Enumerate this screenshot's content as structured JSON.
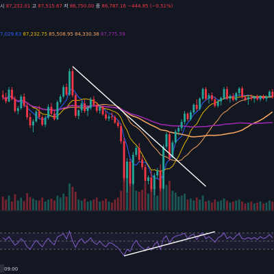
{
  "ohlc_legend": {
    "items": [
      {
        "text": "시",
        "color": "#d1d4dc"
      },
      {
        "text": "87,232.01",
        "color": "#f23645"
      },
      {
        "text": "고",
        "color": "#d1d4dc"
      },
      {
        "text": "87,515.67",
        "color": "#f23645"
      },
      {
        "text": "저",
        "color": "#d1d4dc"
      },
      {
        "text": "86,750.00",
        "color": "#f23645"
      },
      {
        "text": "종",
        "color": "#d1d4dc"
      },
      {
        "text": "86,787.16",
        "color": "#f23645"
      },
      {
        "text": "−444.85 (−0.51%)",
        "color": "#f23645"
      }
    ]
  },
  "ma_legend": {
    "items": [
      {
        "text": "7,029.63",
        "color": "#2962ff"
      },
      {
        "text": "87,232.75",
        "color": "#e6b800"
      },
      {
        "text": "85,508.95",
        "color": "#f7a35c"
      },
      {
        "text": "84,330.38",
        "color": "#f4a460"
      },
      {
        "text": "87,775.59",
        "color": "#9c27b0"
      }
    ]
  },
  "time_axis": {
    "labels": [
      "09:00"
    ]
  },
  "colors": {
    "background": "#131722",
    "bull": "#26a69a",
    "bear": "#f23645",
    "rsi_line": "#7e57c2",
    "trendline": "#ffffff"
  },
  "chart_data": {
    "type": "candlestick",
    "candles": [
      [
        88330,
        88460,
        88180,
        88260
      ],
      [
        88260,
        88390,
        88080,
        88140
      ],
      [
        88140,
        88560,
        88110,
        88480
      ],
      [
        88480,
        88560,
        88170,
        88210
      ],
      [
        88210,
        88290,
        87810,
        87860
      ],
      [
        87860,
        88000,
        87760,
        87940
      ],
      [
        87940,
        88340,
        87900,
        88280
      ],
      [
        88280,
        88370,
        87960,
        88010
      ],
      [
        88010,
        88090,
        87610,
        87680
      ],
      [
        87680,
        87800,
        87360,
        87440
      ],
      [
        87440,
        87620,
        87240,
        87560
      ],
      [
        87560,
        87890,
        87520,
        87840
      ],
      [
        87840,
        88010,
        87620,
        87680
      ],
      [
        87680,
        87730,
        87410,
        87460
      ],
      [
        87460,
        87720,
        87390,
        87660
      ],
      [
        87660,
        88050,
        87610,
        87980
      ],
      [
        87980,
        88090,
        87730,
        87780
      ],
      [
        87780,
        87900,
        87580,
        87620
      ],
      [
        87620,
        88170,
        87590,
        88120
      ],
      [
        88120,
        88340,
        88070,
        88280
      ],
      [
        88280,
        88620,
        88230,
        88560
      ],
      [
        88560,
        88660,
        88290,
        88340
      ],
      [
        88340,
        89100,
        88300,
        89020
      ],
      [
        89020,
        89110,
        88260,
        88320
      ],
      [
        88320,
        88380,
        87660,
        87720
      ],
      [
        87720,
        87910,
        87620,
        87880
      ],
      [
        87880,
        88150,
        87810,
        88080
      ],
      [
        88080,
        88200,
        87800,
        87860
      ],
      [
        87860,
        88010,
        87710,
        87950
      ],
      [
        87950,
        88260,
        87890,
        88200
      ],
      [
        88200,
        88290,
        87980,
        88040
      ],
      [
        88040,
        88120,
        87810,
        87870
      ],
      [
        87870,
        88050,
        87780,
        87980
      ],
      [
        87980,
        88020,
        87720,
        87760
      ],
      [
        87760,
        87860,
        87580,
        87640
      ],
      [
        87640,
        87760,
        87560,
        87700
      ],
      [
        87700,
        87820,
        87600,
        87680
      ],
      [
        87680,
        87740,
        87480,
        87520
      ],
      [
        87520,
        87600,
        87360,
        87420
      ],
      [
        87420,
        87500,
        86900,
        86980
      ],
      [
        86980,
        87080,
        85800,
        85900
      ],
      [
        85900,
        86480,
        85480,
        86380
      ],
      [
        86380,
        86460,
        85660,
        85740
      ],
      [
        85740,
        86660,
        85700,
        86580
      ],
      [
        86580,
        86840,
        86520,
        86780
      ],
      [
        86780,
        86920,
        86360,
        86440
      ],
      [
        86440,
        86560,
        86150,
        86220
      ],
      [
        86220,
        86300,
        85760,
        85820
      ],
      [
        85820,
        85980,
        85720,
        85920
      ],
      [
        85920,
        86120,
        85500,
        85580
      ],
      [
        85580,
        86040,
        85400,
        85980
      ],
      [
        85980,
        86200,
        85880,
        86120
      ],
      [
        86120,
        86310,
        85520,
        85600
      ],
      [
        85600,
        86880,
        85560,
        86820
      ],
      [
        86820,
        87240,
        86760,
        87180
      ],
      [
        87180,
        87260,
        86400,
        86500
      ],
      [
        86500,
        87000,
        86470,
        86940
      ],
      [
        86940,
        87320,
        86900,
        87260
      ],
      [
        87260,
        87420,
        87150,
        87360
      ],
      [
        87360,
        87620,
        87280,
        87540
      ],
      [
        87540,
        87860,
        87470,
        87780
      ],
      [
        87780,
        87820,
        87560,
        87620
      ],
      [
        87620,
        87880,
        87580,
        87820
      ],
      [
        87820,
        88080,
        87780,
        88040
      ],
      [
        88040,
        88200,
        87860,
        87920
      ],
      [
        87920,
        88260,
        87880,
        88220
      ],
      [
        88220,
        88540,
        88180,
        88500
      ],
      [
        88500,
        88560,
        88160,
        88220
      ],
      [
        88220,
        88380,
        88080,
        88320
      ],
      [
        88320,
        88400,
        88150,
        88200
      ],
      [
        88200,
        88280,
        87960,
        88010
      ],
      [
        88010,
        88200,
        87960,
        88140
      ],
      [
        88140,
        88280,
        88020,
        88240
      ],
      [
        88240,
        88560,
        88200,
        88500
      ],
      [
        88500,
        88580,
        88180,
        88220
      ],
      [
        88220,
        88340,
        88100,
        88300
      ],
      [
        88300,
        88380,
        88140,
        88180
      ],
      [
        88180,
        88420,
        88140,
        88380
      ],
      [
        88380,
        88560,
        88300,
        88520
      ],
      [
        88520,
        88580,
        88220,
        88260
      ],
      [
        88260,
        88320,
        88140,
        88200
      ],
      [
        88200,
        88300,
        88040,
        88260
      ],
      [
        88260,
        88340,
        88160,
        88220
      ],
      [
        88220,
        88300,
        88100,
        88280
      ],
      [
        88280,
        88340,
        88160,
        88200
      ],
      [
        88200,
        88320,
        88140,
        88300
      ],
      [
        88300,
        88340,
        88180,
        88220
      ],
      [
        88220,
        88320,
        88140,
        88280
      ],
      [
        88280,
        88460,
        88240,
        88420
      ],
      [
        88420,
        88500,
        88220,
        88260
      ]
    ],
    "volumes": [
      28,
      22,
      30,
      18,
      33,
      20,
      26,
      19,
      35,
      27,
      24,
      21,
      20,
      26,
      18,
      22,
      24,
      20,
      30,
      26,
      34,
      28,
      55,
      48,
      38,
      22,
      20,
      24,
      18,
      20,
      22,
      26,
      18,
      20,
      24,
      18,
      16,
      22,
      26,
      40,
      98,
      75,
      60,
      62,
      40,
      38,
      42,
      56,
      34,
      48,
      52,
      30,
      66,
      84,
      52,
      60,
      40,
      36,
      28,
      30,
      34,
      22,
      24,
      20,
      26,
      22,
      30,
      18,
      20,
      16,
      22,
      18,
      20,
      24,
      20,
      16,
      18,
      20,
      22,
      18,
      14,
      16,
      18,
      14,
      16,
      18,
      14,
      16,
      20,
      18
    ],
    "rsi": [
      58,
      53,
      61,
      50,
      40,
      46,
      56,
      49,
      36,
      30,
      42,
      52,
      44,
      36,
      48,
      57,
      47,
      41,
      60,
      64,
      68,
      55,
      74,
      50,
      35,
      50,
      56,
      45,
      50,
      58,
      47,
      42,
      50,
      41,
      36,
      46,
      45,
      39,
      34,
      24,
      15,
      30,
      25,
      42,
      52,
      40,
      34,
      26,
      36,
      28,
      42,
      48,
      30,
      56,
      63,
      44,
      57,
      62,
      64,
      66,
      69,
      56,
      64,
      67,
      54,
      65,
      70,
      56,
      61,
      55,
      47,
      58,
      62,
      70,
      56,
      61,
      54,
      63,
      68,
      56,
      55,
      59,
      55,
      59,
      54,
      61,
      56,
      59,
      66,
      58
    ],
    "moving_averages": [
      "7,029.63",
      "87,232.75",
      "85,508.95",
      "84,330.38",
      "87,775.59"
    ],
    "ma_colors": [
      "#2962ff",
      "#e6b800",
      "#f7a35c",
      "#f4a460",
      "#9c27b0"
    ],
    "ma_periods": [
      5,
      10,
      20,
      40,
      60
    ],
    "ylim": [
      85100,
      89700
    ],
    "rsi_bands": [
      30,
      50,
      70
    ],
    "trendlines": [
      {
        "pane": "price",
        "from": [
          23,
          89160
        ],
        "to": [
          67,
          85660
        ]
      },
      {
        "pane": "rsi",
        "from": [
          40,
          14
        ],
        "to": [
          70,
          73
        ]
      }
    ],
    "xlabels": [
      "09:00"
    ],
    "grid": false
  }
}
